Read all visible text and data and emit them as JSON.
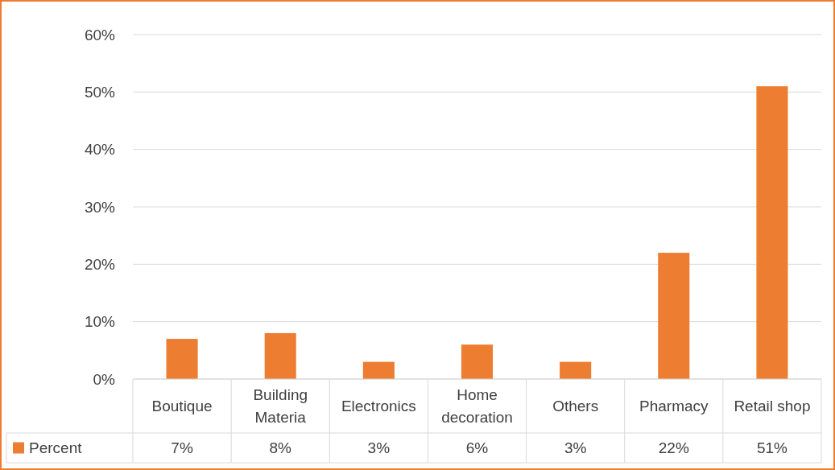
{
  "chart_data": {
    "type": "bar",
    "categories": [
      "Boutique",
      "Building Materia",
      "Electronics",
      "Home decoration",
      "Others",
      "Pharmacy",
      "Retail shop"
    ],
    "series": [
      {
        "name": "Percent",
        "color": "#ed7d31",
        "values": [
          7,
          8,
          3,
          6,
          3,
          22,
          51
        ],
        "value_labels": [
          "7%",
          "8%",
          "3%",
          "6%",
          "3%",
          "22%",
          "51%"
        ]
      }
    ],
    "ylim": [
      0,
      60
    ],
    "yticks": [
      {
        "value": 0,
        "label": "0%"
      },
      {
        "value": 10,
        "label": "10%"
      },
      {
        "value": 20,
        "label": "20%"
      },
      {
        "value": 30,
        "label": "30%"
      },
      {
        "value": 40,
        "label": "40%"
      },
      {
        "value": 50,
        "label": "50%"
      },
      {
        "value": 60,
        "label": "60%"
      }
    ],
    "grid": "y",
    "legend": "bottom left"
  }
}
